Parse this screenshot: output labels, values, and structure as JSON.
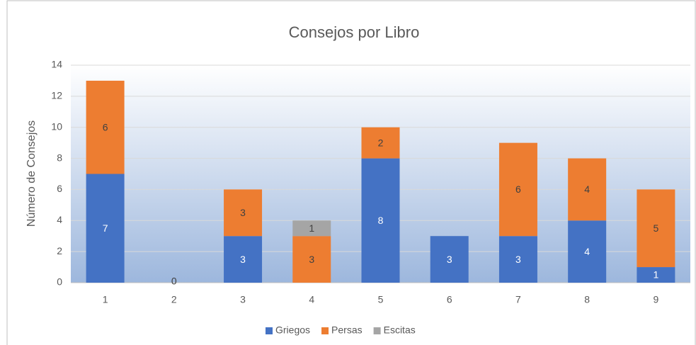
{
  "chart_data": {
    "type": "stacked_bar",
    "title": "Consejos por Libro",
    "y_label": "Número de Consejos",
    "categories": [
      "1",
      "2",
      "3",
      "4",
      "5",
      "6",
      "7",
      "8",
      "9"
    ],
    "series": [
      {
        "name": "Griegos",
        "color": "#4472c4",
        "values": [
          7,
          0,
          3,
          null,
          8,
          3,
          3,
          4,
          1
        ]
      },
      {
        "name": "Persas",
        "color": "#ed7d31",
        "values": [
          6,
          null,
          3,
          3,
          2,
          null,
          6,
          4,
          5
        ]
      },
      {
        "name": "Escitas",
        "color": "#a5a5a5",
        "values": [
          null,
          null,
          null,
          1,
          null,
          null,
          null,
          null,
          null
        ]
      }
    ],
    "ylim": [
      0,
      14
    ],
    "yticks": [
      0,
      2,
      4,
      6,
      8,
      10,
      12,
      14
    ],
    "grid": true,
    "legend": "bottom"
  }
}
